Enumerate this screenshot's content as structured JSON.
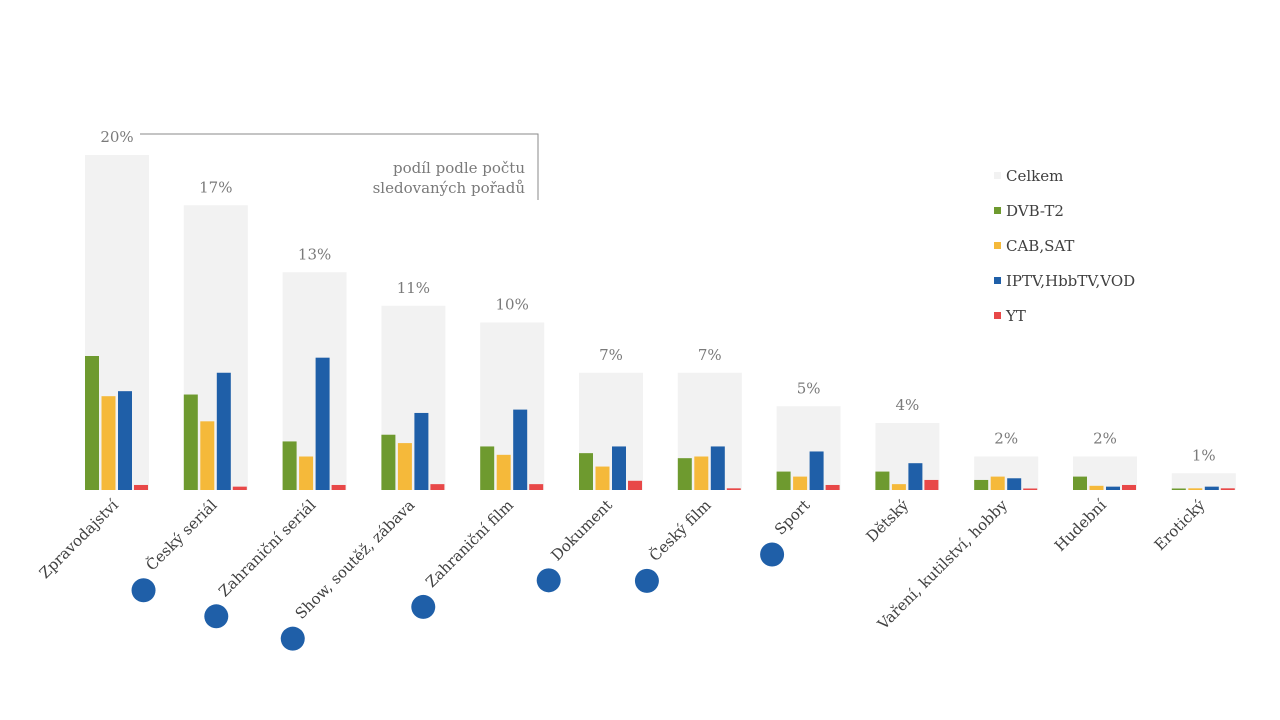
{
  "chart_data": {
    "type": "bar",
    "note": [
      "podíl podle počtu",
      "sledovaných pořadů"
    ],
    "categories": [
      "Zpravodajství",
      "Český seriál",
      "Zahraniční seriál",
      "Show, soutěž, zábava",
      "Zahraniční film",
      "Dokument",
      "Český film",
      "Sport",
      "Dětský",
      "Vaření, kutilství, hobby",
      "Hudební",
      "Erotický"
    ],
    "total_labels": [
      "20%",
      "17%",
      "13%",
      "11%",
      "10%",
      "7%",
      "7%",
      "5%",
      "4%",
      "2%",
      "2%",
      "1%"
    ],
    "total": [
      20,
      17,
      13,
      11,
      10,
      7,
      7,
      5,
      4,
      2,
      2,
      1
    ],
    "series": [
      {
        "name": "DVB-T2",
        "color": "#6e9a2f",
        "values": [
          8.0,
          5.7,
          2.9,
          3.3,
          2.6,
          2.2,
          1.9,
          1.1,
          1.1,
          0.6,
          0.8,
          0.05
        ]
      },
      {
        "name": "CAB,SAT",
        "color": "#f5b93a",
        "values": [
          5.6,
          4.1,
          2.0,
          2.8,
          2.1,
          1.4,
          2.0,
          0.8,
          0.35,
          0.8,
          0.25,
          0.1
        ]
      },
      {
        "name": "IPTV,HbbTV,VOD",
        "color": "#1f5fa8",
        "values": [
          5.9,
          7.0,
          7.9,
          4.6,
          4.8,
          2.6,
          2.6,
          2.3,
          1.6,
          0.7,
          0.2,
          0.2
        ]
      },
      {
        "name": "YT",
        "color": "#e84848",
        "values": [
          0.3,
          0.2,
          0.3,
          0.35,
          0.35,
          0.55,
          0.1,
          0.3,
          0.6,
          0.05,
          0.3,
          0.1
        ]
      }
    ],
    "legend": [
      {
        "name": "Celkem",
        "color": "#f2f2f2"
      },
      {
        "name": "DVB-T2",
        "color": "#6e9a2f"
      },
      {
        "name": "CAB,SAT",
        "color": "#f5b93a"
      },
      {
        "name": "IPTV,HbbTV,VOD",
        "color": "#1f5fa8"
      },
      {
        "name": "YT",
        "color": "#e84848"
      }
    ],
    "legend_position": "top-right",
    "marker_color": "#1f5fa8",
    "markers_on": [
      "Český seriál",
      "Zahraniční seriál",
      "Show, soutěž, zábava",
      "Zahraniční film",
      "Dokument",
      "Český film",
      "Sport"
    ],
    "ylim": [
      0,
      20
    ],
    "grid": false
  }
}
